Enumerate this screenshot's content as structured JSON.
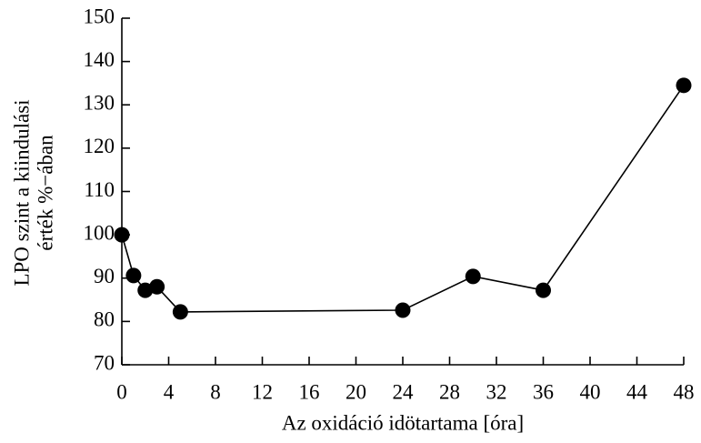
{
  "chart_data": {
    "type": "line",
    "xlabel": "Az oxidáció idötartama [óra]",
    "ylabel": [
      "LPO szint a kiindulási",
      "érték %−ában"
    ],
    "x": [
      0,
      1,
      2,
      3,
      5,
      24,
      30,
      36,
      48
    ],
    "series": [
      {
        "name": "LPO",
        "color": "#000000",
        "values": [
          100,
          90.6,
          87.2,
          88,
          82.2,
          82.6,
          90.4,
          87.2,
          134.5
        ]
      }
    ],
    "xlim": [
      0,
      48
    ],
    "xticks": [
      0,
      4,
      8,
      12,
      16,
      20,
      24,
      28,
      32,
      36,
      40,
      44,
      48
    ],
    "ylim": [
      70,
      150
    ],
    "yticks": [
      70,
      80,
      90,
      100,
      110,
      120,
      130,
      140,
      150
    ],
    "grid": false
  }
}
